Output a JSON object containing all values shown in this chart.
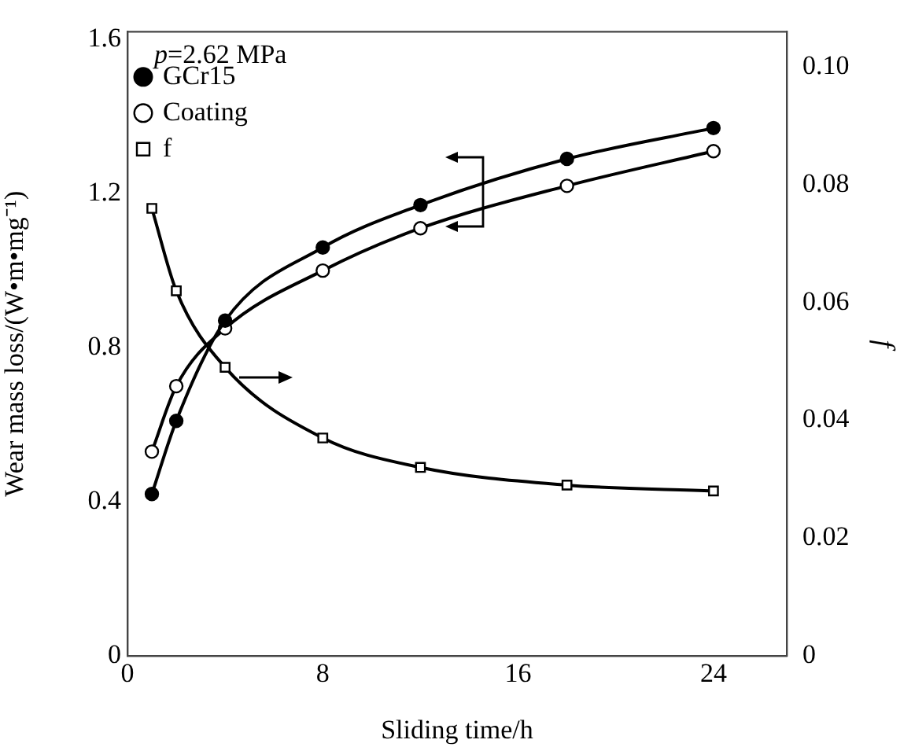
{
  "chart_data": {
    "type": "line",
    "xlabel": "Sliding time/h",
    "ylabel": "Wear mass loss/(W•m•mg⁻¹)",
    "y2label": "f",
    "annotations": [
      "p=2.62 MPa"
    ],
    "xlim": [
      0,
      27
    ],
    "xticks": [
      0,
      8,
      16,
      24
    ],
    "ylim": [
      0,
      1.62
    ],
    "yticks": [
      0,
      0.4,
      0.8,
      1.2,
      1.6
    ],
    "y2lim": [
      0,
      0.106
    ],
    "y2ticks": [
      0,
      0.02,
      0.04,
      0.06,
      0.08,
      {
        "value": 0.1,
        "label": "0.10"
      }
    ],
    "grid": false,
    "legend": "top left",
    "series": [
      {
        "name": "GCr15",
        "color": "#000000",
        "marker": "circle",
        "x": [
          1,
          2,
          4,
          8,
          12,
          18,
          24
        ],
        "values": [
          0.42,
          0.61,
          0.87,
          1.06,
          1.17,
          1.29,
          1.37
        ]
      },
      {
        "name": "Coating",
        "color": "#000000",
        "marker": "circle",
        "x": [
          1,
          2,
          4,
          8,
          12,
          18,
          24
        ],
        "values": [
          0.53,
          0.7,
          0.85,
          1.0,
          1.11,
          1.22,
          1.31
        ]
      },
      {
        "name": "f",
        "color": "#000000",
        "marker": "square",
        "axis": "y2",
        "x": [
          1,
          2,
          4,
          8,
          12,
          18,
          24
        ],
        "values": [
          0.076,
          0.062,
          0.049,
          0.037,
          0.032,
          0.029,
          0.028
        ]
      }
    ]
  }
}
